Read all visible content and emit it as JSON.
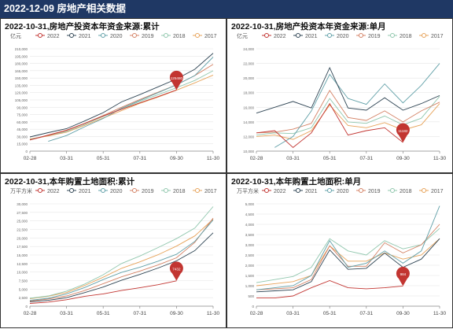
{
  "header": {
    "title": "2022-12-09 房地产相关数据"
  },
  "legend_labels": [
    "2022",
    "2021",
    "2020",
    "2019",
    "2018",
    "2017"
  ],
  "series_colors": {
    "2022": "#c23531",
    "2021": "#2f4554",
    "2020": "#61a0a8",
    "2019": "#d48265",
    "2018": "#91c7ae",
    "2017": "#e7a35a"
  },
  "x_tick_labels": [
    "02-28",
    "03-31",
    "05-31",
    "07-31",
    "09-30",
    "11-30"
  ],
  "chart_data": [
    {
      "type": "line",
      "title": "2022-10-31,房地产投资本年资金来源:累计",
      "ylabel": "亿元",
      "ylim": [
        0,
        210000
      ],
      "yticks": [
        "0",
        "15,000",
        "30,000",
        "45,000",
        "60,000",
        "75,000",
        "90,000",
        "105,000",
        "120,000",
        "135,000",
        "150,000",
        "165,000",
        "180,000",
        "195,000",
        "210,000"
      ],
      "pin": {
        "series": "2022",
        "label": "125480"
      },
      "series": [
        {
          "name": "2022",
          "values": [
            23000,
            33000,
            43000,
            57000,
            72000,
            86000,
            99000,
            112000,
            125480,
            null,
            null
          ]
        },
        {
          "name": "2021",
          "values": [
            29000,
            38000,
            46000,
            62000,
            79000,
            101000,
            116000,
            132000,
            148000,
            168000,
            201000
          ]
        },
        {
          "name": "2020",
          "values": [
            null,
            20000,
            32000,
            50000,
            67000,
            88000,
            104000,
            120000,
            136000,
            155000,
            193000
          ]
        },
        {
          "name": "2019",
          "values": [
            23000,
            32000,
            42000,
            57000,
            73000,
            90000,
            106000,
            121000,
            136000,
            155000,
            178000
          ]
        },
        {
          "name": "2018",
          "values": [
            24000,
            32000,
            40000,
            55000,
            71000,
            87000,
            102000,
            116000,
            130000,
            145000,
            165000
          ]
        },
        {
          "name": "2017",
          "values": [
            25000,
            31000,
            39000,
            53000,
            68000,
            83000,
            98000,
            111000,
            125000,
            140000,
            156000
          ]
        }
      ]
    },
    {
      "type": "line",
      "title": "2022-10-31,房地产投资本年资金来源:单月",
      "ylabel": "亿元",
      "ylim": [
        10000,
        24000
      ],
      "yticks": [
        "10,000",
        "12,000",
        "14,000",
        "16,000",
        "18,000",
        "20,000",
        "22,000",
        "24,000"
      ],
      "pin": {
        "series": "2022",
        "label": "11182"
      },
      "series": [
        {
          "name": "2022",
          "values": [
            12500,
            12800,
            10500,
            12500,
            16500,
            12200,
            12800,
            13200,
            11182,
            null,
            null
          ]
        },
        {
          "name": "2021",
          "values": [
            15200,
            16000,
            16800,
            15900,
            21400,
            15900,
            15600,
            17300,
            15600,
            16500,
            17600
          ]
        },
        {
          "name": "2020",
          "values": [
            null,
            10500,
            12000,
            15500,
            20500,
            17200,
            16400,
            19200,
            16600,
            19000,
            22000
          ]
        },
        {
          "name": "2019",
          "values": [
            12500,
            12600,
            13000,
            13800,
            18300,
            14600,
            14200,
            15500,
            14000,
            15500,
            16700
          ]
        },
        {
          "name": "2018",
          "values": [
            12200,
            12500,
            12400,
            13200,
            17200,
            14000,
            13800,
            14800,
            13600,
            14500,
            17500
          ]
        },
        {
          "name": "2017",
          "values": [
            12000,
            12200,
            11600,
            12800,
            16300,
            13500,
            13200,
            13900,
            12900,
            13600,
            16500
          ]
        }
      ]
    },
    {
      "type": "line",
      "title": "2022-10-31,本年购置土地面积:累计",
      "ylabel": "万平方米",
      "ylim": [
        0,
        30000
      ],
      "yticks": [
        "0",
        "2,500",
        "5,000",
        "7,500",
        "10,000",
        "12,500",
        "15,000",
        "17,500",
        "20,000",
        "22,500",
        "25,000",
        "27,500",
        "30,000"
      ],
      "pin": {
        "series": "2022",
        "label": "7432"
      },
      "series": [
        {
          "name": "2022",
          "values": [
            800,
            1200,
            1900,
            2900,
            3600,
            4600,
            5400,
            6300,
            7432,
            null,
            null
          ]
        },
        {
          "name": "2021",
          "values": [
            1300,
            1700,
            2500,
            4000,
            5600,
            7600,
            9300,
            11200,
            13300,
            16300,
            21500
          ]
        },
        {
          "name": "2020",
          "values": [
            1700,
            2300,
            3600,
            5500,
            7800,
            9900,
            11400,
            13200,
            15200,
            19000,
            25300
          ]
        },
        {
          "name": "2019",
          "values": [
            1500,
            2100,
            3000,
            4600,
            6600,
            8600,
            10300,
            12100,
            14200,
            18700,
            25800
          ]
        },
        {
          "name": "2018",
          "values": [
            2300,
            3000,
            4400,
            6500,
            9200,
            12500,
            14700,
            17200,
            19800,
            22900,
            29200
          ]
        },
        {
          "name": "2017",
          "values": [
            2200,
            2900,
            4000,
            6100,
            8500,
            11100,
            13000,
            15100,
            17600,
            20600,
            25500
          ]
        }
      ]
    },
    {
      "type": "line",
      "title": "2022-10-31,本年购置土地面积:单月",
      "ylabel": "万平方米",
      "ylim": [
        0,
        5000
      ],
      "yticks": [
        "0",
        "500",
        "1,000",
        "1,500",
        "2,000",
        "2,500",
        "3,000",
        "3,500",
        "4,000",
        "4,500",
        "5,000"
      ],
      "pin": {
        "series": "2022",
        "label": "984"
      },
      "series": [
        {
          "name": "2022",
          "values": [
            400,
            400,
            500,
            900,
            1250,
            900,
            850,
            900,
            984,
            null,
            null
          ]
        },
        {
          "name": "2021",
          "values": [
            700,
            750,
            800,
            1200,
            2750,
            1800,
            1850,
            2600,
            1900,
            2300,
            3300
          ]
        },
        {
          "name": "2020",
          "values": [
            800,
            900,
            1000,
            1500,
            3200,
            1900,
            2100,
            2700,
            2100,
            2700,
            4900
          ]
        },
        {
          "name": "2019",
          "values": [
            800,
            850,
            900,
            1300,
            2950,
            1950,
            1950,
            3100,
            2600,
            3000,
            4000
          ]
        },
        {
          "name": "2018",
          "values": [
            1150,
            1300,
            1450,
            1900,
            3300,
            2700,
            2500,
            3200,
            2800,
            3000,
            3800
          ]
        },
        {
          "name": "2017",
          "values": [
            1000,
            1100,
            1200,
            1500,
            2950,
            2200,
            2200,
            2600,
            2300,
            2500,
            3300
          ]
        }
      ]
    }
  ]
}
